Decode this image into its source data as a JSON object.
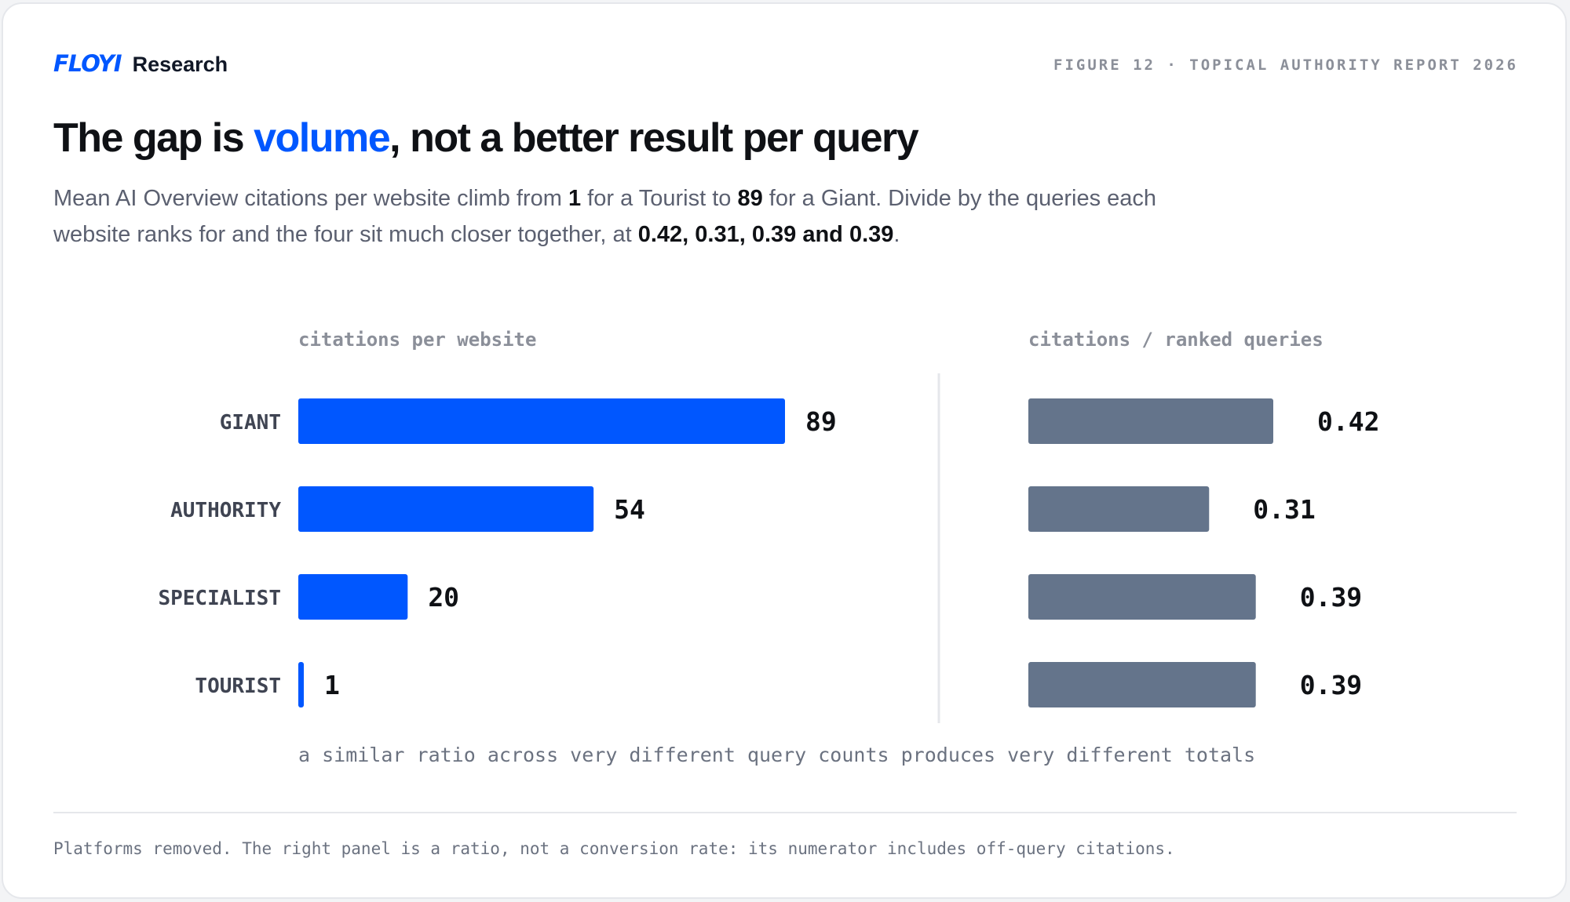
{
  "brand": {
    "mark": "FLOYI",
    "name": "Research",
    "accent": "#0057ff"
  },
  "figure_label": "FIGURE 12 · TOPICAL AUTHORITY REPORT 2026",
  "headline": {
    "before": "The gap is ",
    "highlight": "volume",
    "after": ", not a better result per query"
  },
  "subtitle": {
    "p1": "Mean AI Overview citations per website climb from ",
    "b1": "1",
    "p2": " for a Tourist to ",
    "b2": "89",
    "p3": " for a Giant. Divide by the queries each website ranks for and the four sit much closer together, at ",
    "b3": "0.42, 0.31, 0.39 and 0.39",
    "p4": "."
  },
  "caption": "a similar ratio across very different query counts produces very different totals",
  "footnote": "Platforms removed. The right panel is a ratio, not a conversion rate: its numerator includes off-query citations.",
  "chart_data": [
    {
      "type": "bar",
      "orientation": "horizontal",
      "title": "citations per website",
      "categories": [
        "GIANT",
        "AUTHORITY",
        "SPECIALIST",
        "TOURIST"
      ],
      "values": [
        89,
        54,
        20,
        1
      ],
      "value_labels": [
        "89",
        "54",
        "20",
        "1"
      ],
      "color": "#0057ff",
      "xlim": [
        0,
        89
      ]
    },
    {
      "type": "bar",
      "orientation": "horizontal",
      "title": "citations / ranked queries",
      "categories": [
        "GIANT",
        "AUTHORITY",
        "SPECIALIST",
        "TOURIST"
      ],
      "values": [
        0.42,
        0.31,
        0.39,
        0.39
      ],
      "value_labels": [
        "0.42",
        "0.31",
        "0.39",
        "0.39"
      ],
      "color": "#64748b",
      "xlim": [
        0,
        0.42
      ]
    }
  ]
}
